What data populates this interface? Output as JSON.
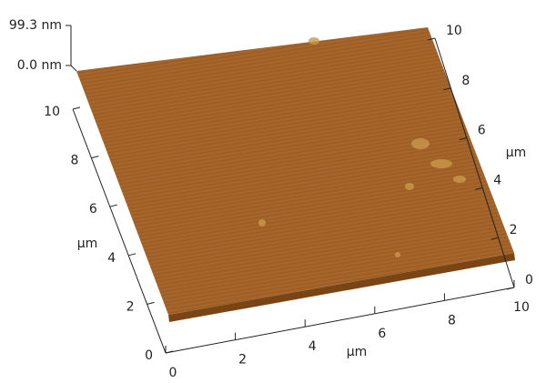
{
  "chart_data": {
    "type": "surface3d",
    "x_label": "μm",
    "y_label": "μm",
    "y2_label": "μm",
    "xlim": [
      0,
      10
    ],
    "xticks": [
      0,
      2,
      4,
      6,
      8,
      10
    ],
    "ylim": [
      0,
      10
    ],
    "yticks": [
      0,
      2,
      4,
      6,
      8,
      10
    ],
    "y2lim": [
      0,
      10
    ],
    "y2ticks": [
      0,
      2,
      4,
      6,
      8,
      10
    ],
    "zlim": [
      0,
      99.3
    ],
    "zticks": [
      {
        "value": 0,
        "label": "0.0 nm"
      },
      {
        "value": 99.3,
        "label": "99.3 nm"
      }
    ],
    "color": "#a5652b"
  }
}
